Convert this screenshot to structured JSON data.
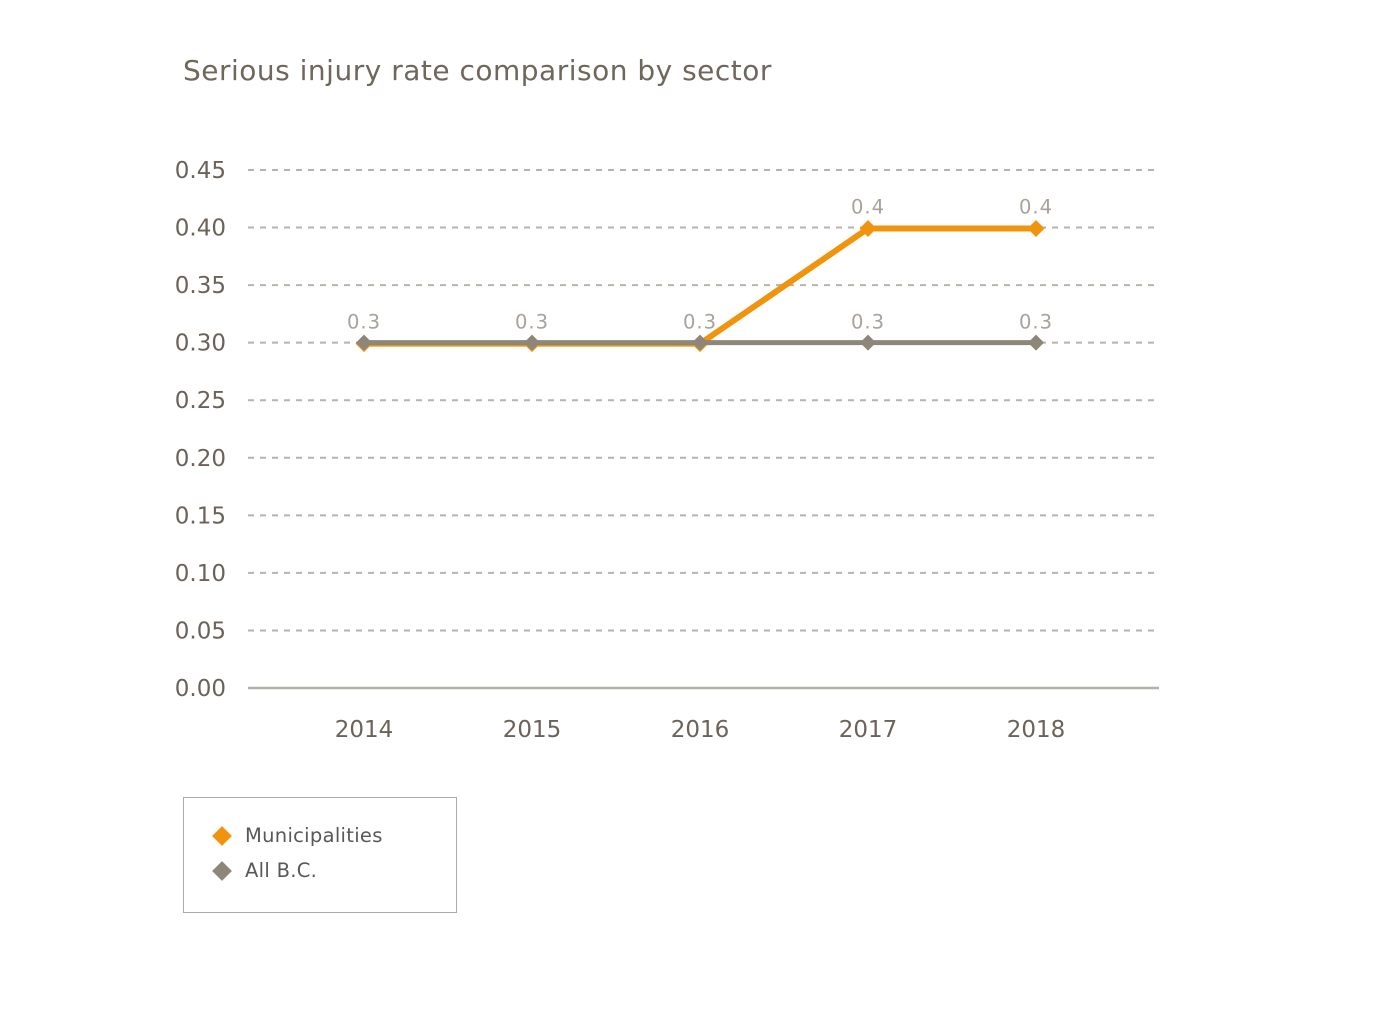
{
  "title": "Serious injury rate comparison by sector",
  "chart_data": {
    "type": "line",
    "title": "Serious injury rate comparison by sector",
    "categories": [
      "2014",
      "2015",
      "2016",
      "2017",
      "2018"
    ],
    "series": [
      {
        "name": "Municipalities",
        "color": "#F0930D",
        "values": [
          0.3,
          0.3,
          0.3,
          0.4,
          0.4
        ],
        "point_labels": [
          "",
          "",
          "",
          "0.4",
          "0.4"
        ],
        "marker": "diamond"
      },
      {
        "name": "All B.C.",
        "color": "#8D8679",
        "values": [
          0.3,
          0.3,
          0.3,
          0.3,
          0.3
        ],
        "point_labels": [
          "0.3",
          "0.3",
          "0.3",
          "0.3",
          "0.3"
        ],
        "marker": "diamond"
      }
    ],
    "xlabel": "",
    "ylabel": "",
    "ylim": [
      0,
      0.45
    ],
    "ytick_step": 0.05,
    "ytick_labels": [
      "0.00",
      "0.05",
      "0.10",
      "0.15",
      "0.20",
      "0.25",
      "0.30",
      "0.35",
      "0.40",
      "0.45"
    ],
    "grid": "horizontal dashed",
    "legend_position": "bottom-left"
  },
  "legend": {
    "items": [
      {
        "label": "Municipalities",
        "color": "#F0930D"
      },
      {
        "label": "All B.C.",
        "color": "#8D8679"
      }
    ]
  },
  "colors": {
    "background": "#FFFFFF",
    "title_text": "#6F675C",
    "axis_tick_text": "#6B635A",
    "data_label_text": "#A8A29A",
    "gridline": "#B7B2AC",
    "axis_line": "#B3AEA8",
    "municipalities_orange": "#F0930D",
    "all_bc_gray": "#8D8679",
    "legend_border": "#ABABAB",
    "legend_text": "#58585A"
  }
}
